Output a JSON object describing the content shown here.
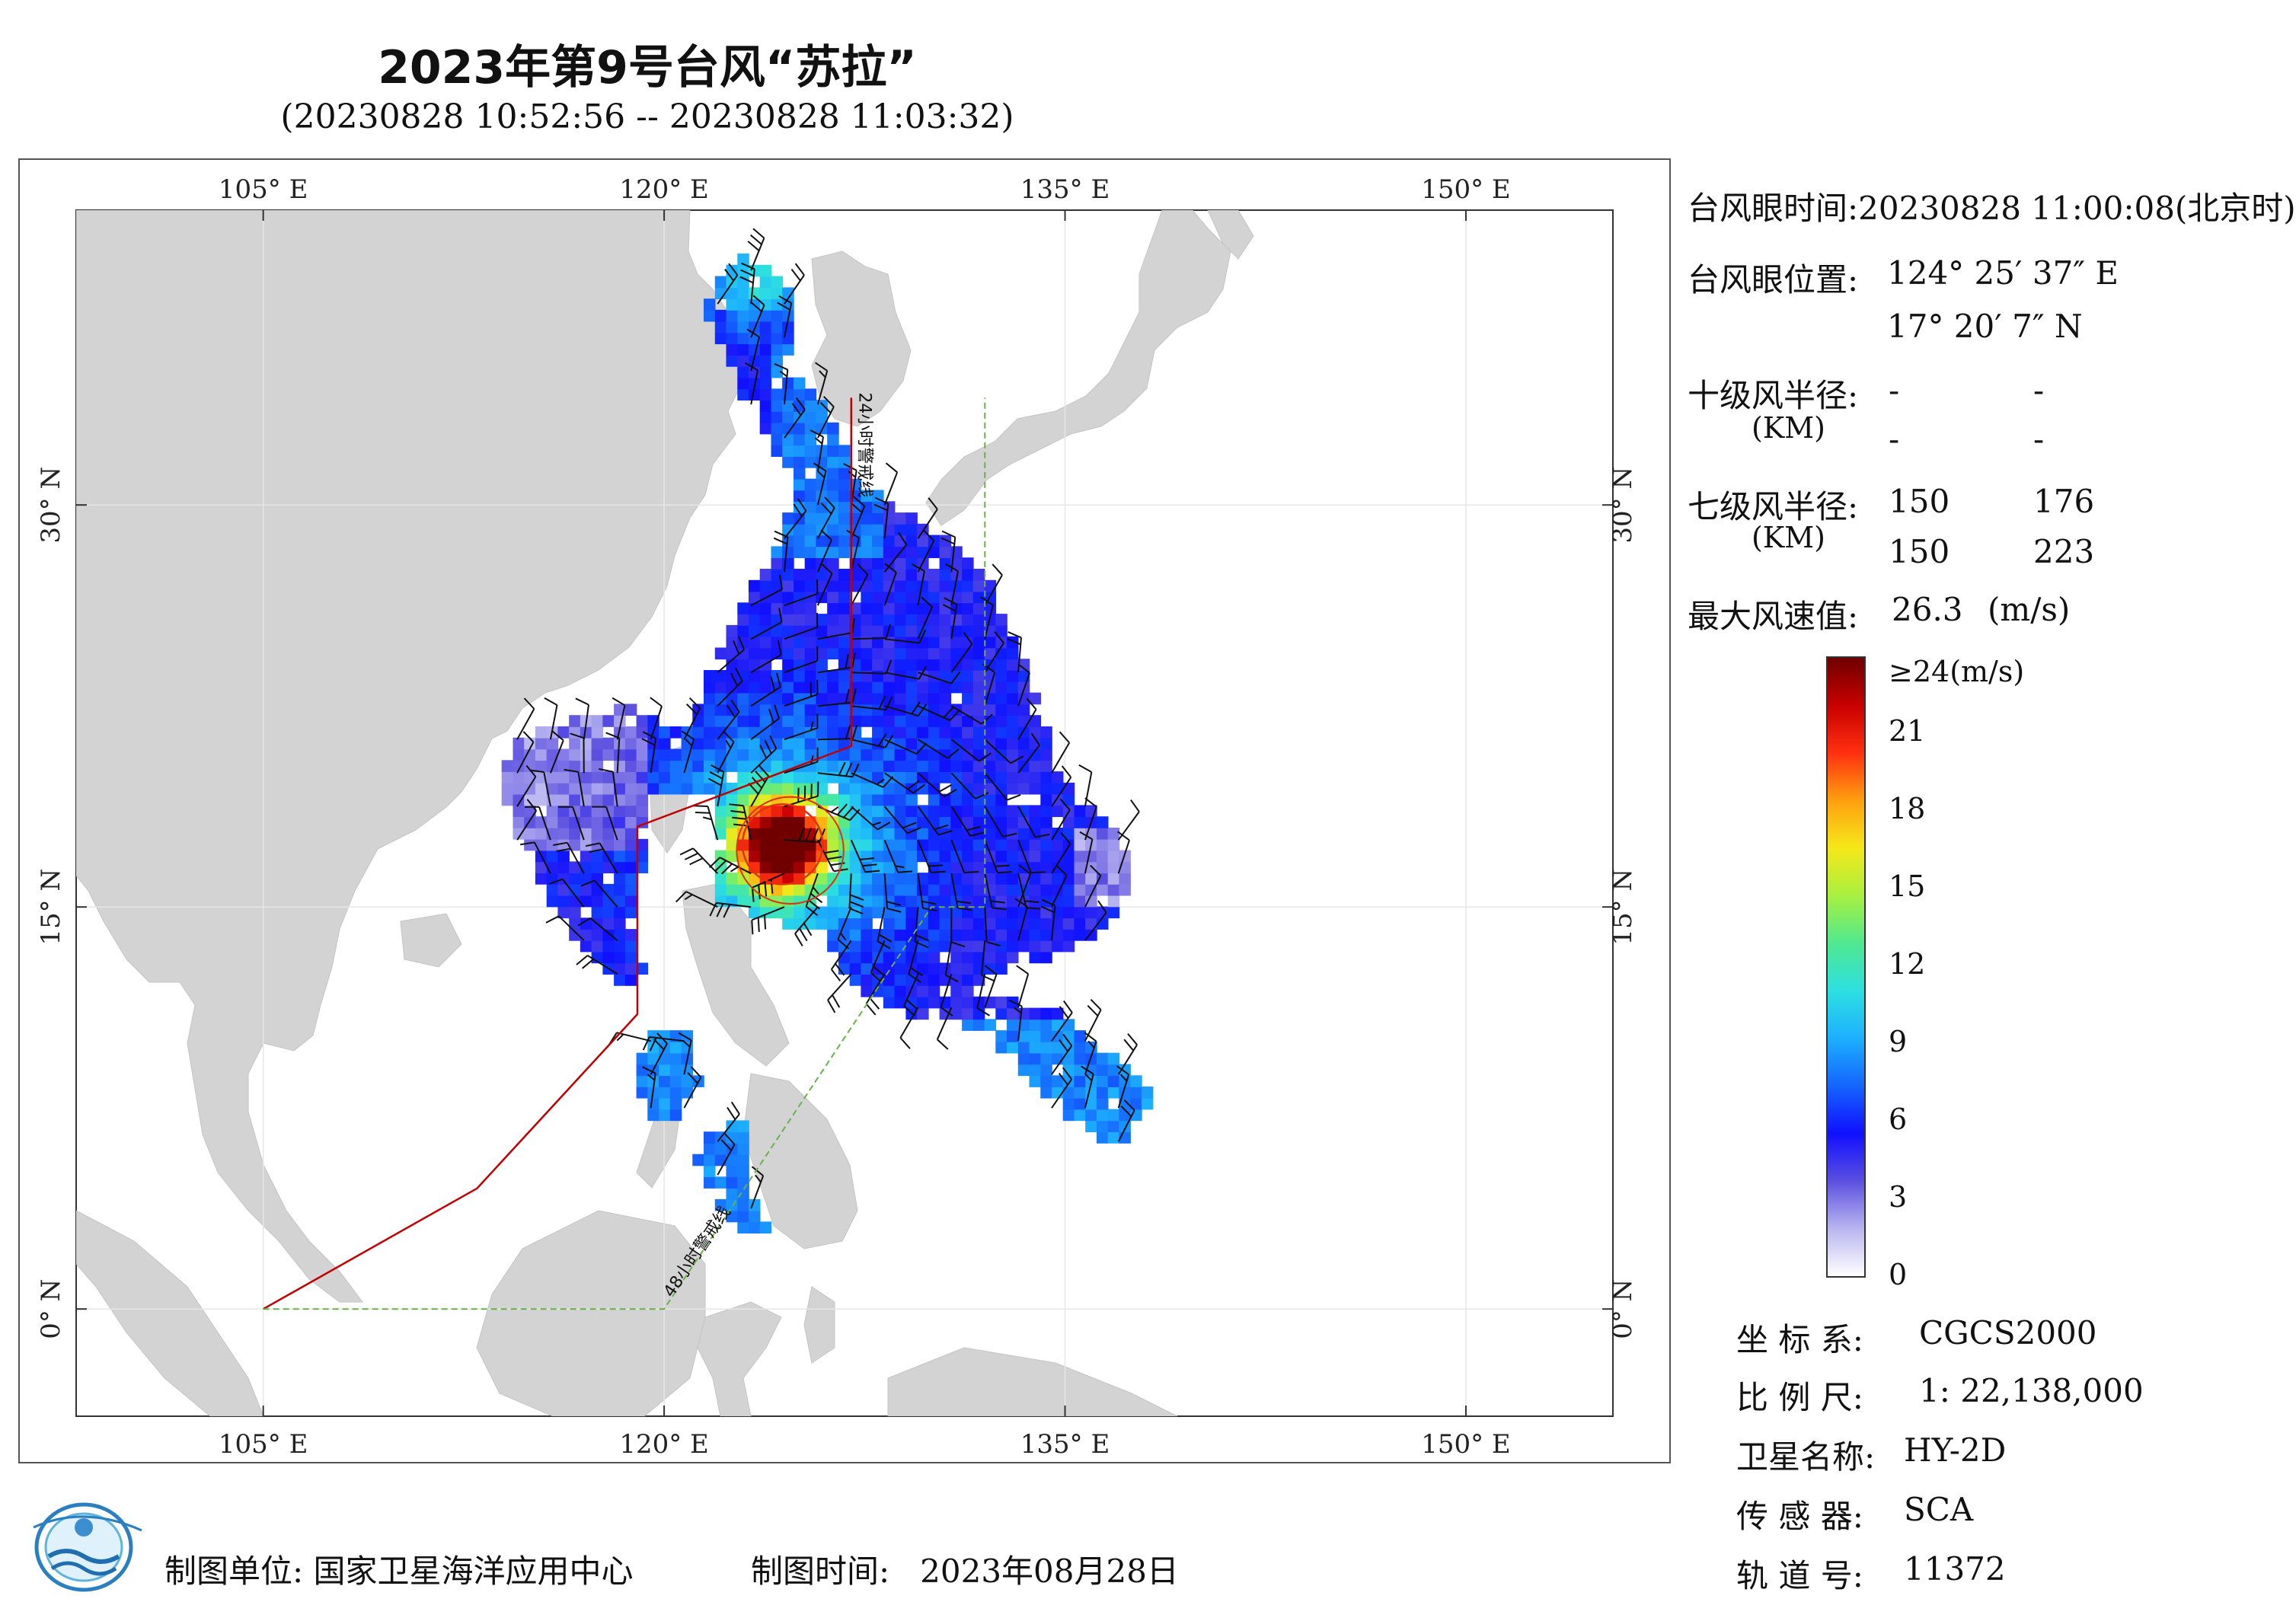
{
  "header": {
    "title": "2023年第9号台风“苏拉”",
    "subtitle": "(20230828 10:52:56 -- 20230828 11:03:32)"
  },
  "map": {
    "lon_range": [
      98,
      155.5
    ],
    "lat_range": [
      -4,
      41
    ],
    "lon_ticks": [
      {
        "value": 105,
        "label": "105° E"
      },
      {
        "value": 120,
        "label": "120° E"
      },
      {
        "value": 135,
        "label": "135° E"
      },
      {
        "value": 150,
        "label": "150° E"
      }
    ],
    "lat_ticks": [
      {
        "value": 0,
        "label": "0° N"
      },
      {
        "value": 15,
        "label": "15° N"
      },
      {
        "value": 30,
        "label": "30° N"
      }
    ],
    "warning_line_24h_label": "24小时警戒线",
    "warning_line_48h_label": "48小时警戒线",
    "warning_line_24h": [
      [
        105,
        0
      ],
      [
        113,
        4.5
      ],
      [
        119,
        11
      ],
      [
        119,
        18
      ],
      [
        127,
        21
      ],
      [
        127,
        34
      ]
    ],
    "warning_line_48h": [
      [
        105,
        0
      ],
      [
        120,
        0
      ],
      [
        130,
        15
      ],
      [
        132,
        15
      ],
      [
        132,
        34
      ]
    ],
    "typhoon_center": {
      "lon": 124.43,
      "lat": 17.34
    },
    "colors": {
      "land": "#d3d3d3",
      "ocean": "#ffffff",
      "line_24h": "#c00000",
      "line_48h": "#6ab04c",
      "graticule": "#e6e6e6",
      "barb": "#111111"
    },
    "land_labels": []
  },
  "info_panel": {
    "eye_time_label": "台风眼时间:",
    "eye_time_value": "20230828 11:00:08(北京时)",
    "eye_pos_label": "台风眼位置:",
    "eye_lon": "124° 25′ 37″ E",
    "eye_lat": "17° 20′ 7″ N",
    "r10_label": "十级风半径:",
    "r10_unit": "(KM)",
    "r10_values": [
      "-",
      "-",
      "-",
      "-"
    ],
    "r7_label": "七级风半径:",
    "r7_unit": "(KM)",
    "r7_values": [
      "150",
      "176",
      "150",
      "223"
    ],
    "max_wind_label": "最大风速值:",
    "max_wind_value": "26.3",
    "max_wind_unit": "(m/s)"
  },
  "colorbar": {
    "labels": [
      "≥24(m/s)",
      "21",
      "18",
      "15",
      "12",
      "9",
      "6",
      "3",
      "0"
    ],
    "stops": [
      "#ffffff",
      "#b9b5f0",
      "#5b4fe0",
      "#1010ff",
      "#1565ff",
      "#1cb0ff",
      "#2de0e0",
      "#4fe890",
      "#a8f040",
      "#f5e81a",
      "#ffa010",
      "#ff3010",
      "#c80000",
      "#700000"
    ]
  },
  "specs": {
    "crs_label": "坐 标 系:",
    "crs_value": "CGCS2000",
    "scale_label": "比 例 尺:",
    "scale_value": "1: 22,138,000",
    "satellite_label": "卫星名称:",
    "satellite_value": "HY-2D",
    "sensor_label": "传 感 器:",
    "sensor_value": "SCA",
    "orbit_label": "轨 道 号:",
    "orbit_value": "11372"
  },
  "footer": {
    "producer_label": "制图单位:",
    "producer_value": "国家卫星海洋应用中心",
    "date_label": "制图时间:",
    "date_value": "2023年08月28日"
  }
}
